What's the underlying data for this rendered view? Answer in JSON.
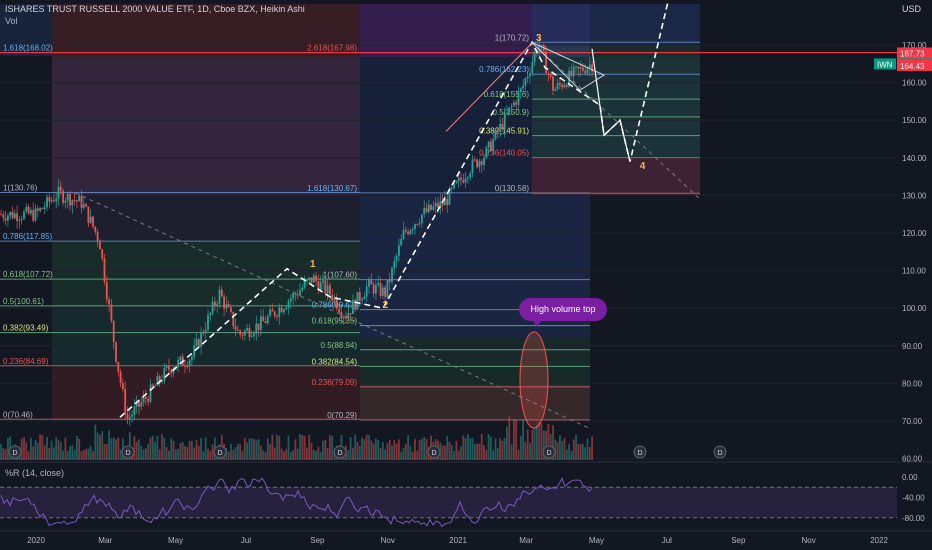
{
  "header": {
    "title": "ISHARES TRUST RUSSELL 2000 VALUE ETF, 1D, Cboe BZX, Heikin Ashi",
    "volume_label": "Vol",
    "currency": "USD",
    "indicator_label": "%R (14, close)"
  },
  "annotations": {
    "callout": "High volume top",
    "waves": [
      "1",
      "2",
      "3",
      "4"
    ]
  },
  "colors": {
    "background": "#131722",
    "up": "#26a69a",
    "down": "#ef5350",
    "fib_line_red": "#f23645",
    "wave_color": "#ffb74d",
    "indicator_line": "#7e57c2"
  },
  "chart_data": [
    {
      "type": "candlestick",
      "title": "ISHARES TRUST RUSSELL 2000 VALUE ETF",
      "symbol": "IWN",
      "last_price": 164.83,
      "price_tags": [
        "167.73",
        "164.83",
        "164.43"
      ],
      "x_ticks": [
        "2020",
        "Mar",
        "May",
        "Jul",
        "Sep",
        "Nov",
        "2021",
        "Mar",
        "May",
        "Jul",
        "Sep",
        "Nov",
        "2022"
      ],
      "y_ticks": [
        60.0,
        70.0,
        80.0,
        90.0,
        100.0,
        110.0,
        120.0,
        130.0,
        140.0,
        150.0,
        160.0,
        170.0
      ],
      "ylim": [
        60,
        185
      ],
      "price_path": [
        [
          "2020-01-01",
          125
        ],
        [
          "2020-01-20",
          130.5
        ],
        [
          "2020-02-10",
          128
        ],
        [
          "2020-02-25",
          118
        ],
        [
          "2020-03-10",
          88
        ],
        [
          "2020-03-20",
          70.5
        ],
        [
          "2020-04-05",
          76
        ],
        [
          "2020-04-25",
          84
        ],
        [
          "2020-05-15",
          87
        ],
        [
          "2020-06-08",
          104
        ],
        [
          "2020-06-25",
          93
        ],
        [
          "2020-07-15",
          96
        ],
        [
          "2020-08-10",
          103
        ],
        [
          "2020-08-28",
          108
        ],
        [
          "2020-09-15",
          103
        ],
        [
          "2020-09-25",
          98
        ],
        [
          "2020-10-15",
          106
        ],
        [
          "2020-10-30",
          104
        ],
        [
          "2020-11-15",
          120
        ],
        [
          "2020-12-01",
          125
        ],
        [
          "2020-12-20",
          128
        ],
        [
          "2021-01-10",
          137
        ],
        [
          "2021-01-25",
          141
        ],
        [
          "2021-02-10",
          150
        ],
        [
          "2021-02-25",
          158
        ],
        [
          "2021-03-12",
          170.5
        ],
        [
          "2021-03-25",
          158
        ],
        [
          "2021-04-10",
          162
        ],
        [
          "2021-04-25",
          164.8
        ]
      ],
      "fib_set_a": {
        "levels": [
          {
            "label": "1(130.76)",
            "value": 130.76
          },
          {
            "label": "0.786(117.85)",
            "value": 117.85
          },
          {
            "label": "0.618(107.72)",
            "value": 107.72
          },
          {
            "label": "0.5(100.61)",
            "value": 100.61
          },
          {
            "label": "0.382(93.49)",
            "value": 93.49
          },
          {
            "label": "0.236(84.69)",
            "value": 84.69
          },
          {
            "label": "0(70.46)",
            "value": 70.46
          },
          {
            "label": "1.618(168.02)",
            "value": 168.02
          }
        ]
      },
      "fib_set_b": {
        "levels": [
          {
            "label": "2.618(167.98)",
            "value": 167.98
          },
          {
            "label": "1.618(130.67)",
            "value": 130.67
          },
          {
            "label": "1(107.60)",
            "value": 107.6
          },
          {
            "label": "0.786(99.63)",
            "value": 99.63
          },
          {
            "label": "0.618(95.35)",
            "value": 95.35
          },
          {
            "label": "0.5(88.94)",
            "value": 88.94
          },
          {
            "label": "0.382(84.54)",
            "value": 84.54
          },
          {
            "label": "0.236(79.09)",
            "value": 79.09
          },
          {
            "label": "0(70.29)",
            "value": 70.29
          }
        ]
      },
      "fib_set_c": {
        "levels": [
          {
            "label": "1(170.72)",
            "value": 170.72
          },
          {
            "label": "0.786(162.23)",
            "value": 162.23
          },
          {
            "label": "0.618(155.6)",
            "value": 155.6
          },
          {
            "label": "0.5(150.9)",
            "value": 150.9
          },
          {
            "label": "0.382(145.91)",
            "value": 145.91
          },
          {
            "label": "0.236(140.05)",
            "value": 140.05
          },
          {
            "label": "0(130.58)",
            "value": 130.58
          }
        ]
      },
      "wave_labels": [
        {
          "label": "1",
          "date": "2020-08-28",
          "value": 111
        },
        {
          "label": "2",
          "date": "2020-10-30",
          "value": 100
        },
        {
          "label": "3",
          "date": "2021-03-12",
          "value": 171
        },
        {
          "label": "4",
          "date": "2021-06-10",
          "value": 137
        }
      ],
      "dividend_markers": [
        "D",
        "D",
        "D",
        "D",
        "D",
        "D",
        "D",
        "D"
      ]
    },
    {
      "type": "line",
      "title": "%R (14, close)",
      "y_ticks": [
        0.0,
        -40.0,
        -80.0
      ],
      "ylim": [
        -100,
        0
      ],
      "bands": [
        -20,
        -80
      ]
    }
  ]
}
